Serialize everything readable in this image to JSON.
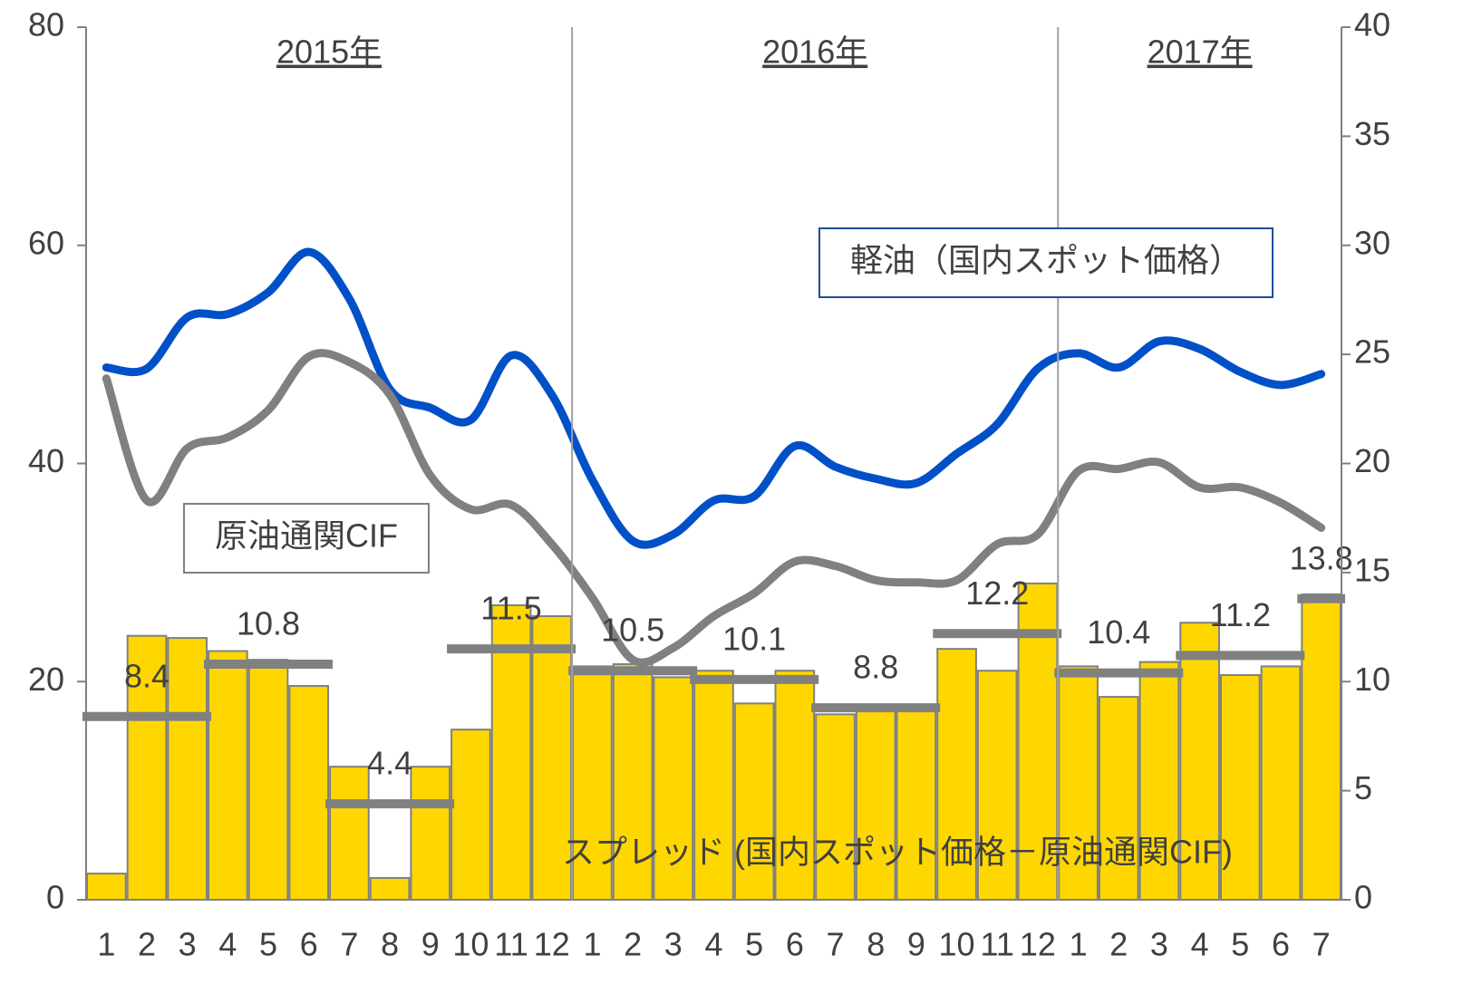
{
  "chart_data": {
    "type": "bar-line",
    "years": [
      "2015年",
      "2016年",
      "2017年"
    ],
    "categories": [
      "1",
      "2",
      "3",
      "4",
      "5",
      "6",
      "7",
      "8",
      "9",
      "10",
      "11",
      "12",
      "1",
      "2",
      "3",
      "4",
      "5",
      "6",
      "7",
      "8",
      "9",
      "10",
      "11",
      "12",
      "1",
      "2",
      "3",
      "4",
      "5",
      "6",
      "7"
    ],
    "series": [
      {
        "name": "スプレッド (国内スポット価格－原油通関CIF)",
        "type": "bar",
        "axis": "y2",
        "color": "#FFD700",
        "values": [
          1.2,
          12.1,
          12.0,
          11.4,
          11.0,
          9.8,
          6.1,
          1.0,
          6.1,
          7.8,
          13.5,
          13.0,
          10.7,
          10.8,
          10.2,
          10.5,
          9.0,
          10.5,
          8.5,
          8.8,
          8.8,
          11.5,
          10.5,
          14.5,
          10.7,
          9.3,
          10.9,
          12.7,
          10.3,
          10.7,
          14.0
        ]
      },
      {
        "name": "軽油（国内スポット価格）",
        "type": "line",
        "color": "#0050C8",
        "values": [
          48.8,
          48.7,
          53.4,
          53.7,
          55.7,
          59.4,
          55.1,
          46.8,
          45.1,
          44.0,
          49.9,
          46.3,
          38.5,
          32.9,
          33.5,
          36.6,
          37.0,
          41.6,
          39.7,
          38.6,
          38.2,
          40.9,
          43.6,
          48.7,
          50.1,
          48.8,
          51.2,
          50.5,
          48.4,
          47.2,
          48.2
        ]
      },
      {
        "name": "原油通関CIF",
        "type": "line",
        "color": "#808080",
        "values": [
          47.8,
          36.6,
          41.4,
          42.4,
          44.9,
          49.8,
          49.3,
          46.3,
          38.9,
          35.8,
          36.2,
          32.6,
          27.7,
          22.0,
          23.1,
          26.0,
          28.1,
          31.0,
          30.6,
          29.3,
          29.1,
          29.3,
          32.6,
          33.5,
          39.3,
          39.5,
          40.1,
          37.8,
          37.8,
          36.4,
          34.1
        ]
      }
    ],
    "quarter_averages": {
      "color": "#808080",
      "axis": "y2",
      "values": [
        8.4,
        10.8,
        4.4,
        11.5,
        10.5,
        10.1,
        8.8,
        12.2,
        10.4,
        11.2,
        13.8
      ]
    },
    "ylim": [
      0,
      80
    ],
    "yticks": [
      0,
      20,
      40,
      60,
      80
    ],
    "y2lim": [
      0,
      40
    ],
    "y2ticks": [
      0,
      5,
      10,
      15,
      20,
      25,
      30,
      35,
      40
    ]
  }
}
